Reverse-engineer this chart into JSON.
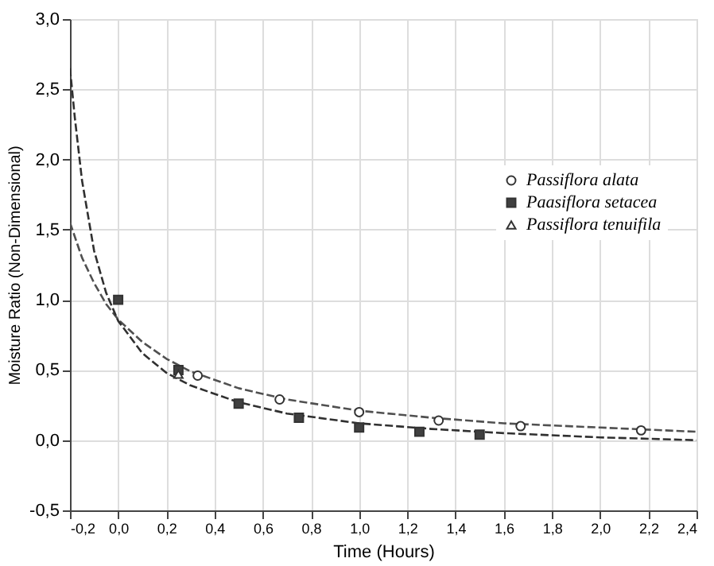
{
  "chart_data": {
    "type": "scatter",
    "xlabel": "Time (Hours)",
    "ylabel": "Moisture Ratio (Non-Dimensional)",
    "xlim": [
      -0.2,
      2.4
    ],
    "ylim": [
      -0.5,
      3.0
    ],
    "xticks": [
      {
        "value": -0.2,
        "label": "-0,2"
      },
      {
        "value": 0,
        "label": "0,0"
      },
      {
        "value": 0.2,
        "label": "0,2"
      },
      {
        "value": 0.4,
        "label": "0,4"
      },
      {
        "value": 0.6,
        "label": "0,6"
      },
      {
        "value": 0.8,
        "label": "0,8"
      },
      {
        "value": 1.0,
        "label": "1,0"
      },
      {
        "value": 1.2,
        "label": "1,2"
      },
      {
        "value": 1.4,
        "label": "1,4"
      },
      {
        "value": 1.6,
        "label": "1,6"
      },
      {
        "value": 1.8,
        "label": "1,8"
      },
      {
        "value": 2.0,
        "label": "2,0"
      },
      {
        "value": 2.2,
        "label": "2,2"
      },
      {
        "value": 2.4,
        "label": "2,4"
      }
    ],
    "yticks": [
      {
        "value": -0.5,
        "label": "-0,5"
      },
      {
        "value": 0,
        "label": "0,0"
      },
      {
        "value": 0.5,
        "label": "0,5"
      },
      {
        "value": 1.0,
        "label": "1,0"
      },
      {
        "value": 1.5,
        "label": "1,5"
      },
      {
        "value": 2.0,
        "label": "2,0"
      },
      {
        "value": 2.5,
        "label": "2,5"
      },
      {
        "value": 3.0,
        "label": "3,0"
      }
    ],
    "grid": true,
    "legend": "right",
    "series": [
      {
        "name": "Passiflora alata",
        "type": "scatter",
        "marker": "circle",
        "color": "#ffffff",
        "x": [
          0.33,
          0.67,
          1.0,
          1.33,
          1.67,
          2.17
        ],
        "values": [
          0.46,
          0.29,
          0.2,
          0.14,
          0.1,
          0.07
        ]
      },
      {
        "name": "Paasiflora setacea",
        "type": "scatter",
        "marker": "square",
        "color": "#404040",
        "x": [
          0.0,
          0.25,
          0.5,
          0.75,
          1.0,
          1.25,
          1.5
        ],
        "values": [
          1.0,
          0.5,
          0.26,
          0.16,
          0.09,
          0.06,
          0.04
        ]
      },
      {
        "name": "Passiflora tenuifila",
        "type": "scatter",
        "marker": "triangle",
        "color": "#ffffff",
        "x": [
          0.25
        ],
        "values": [
          0.47
        ]
      },
      {
        "type": "line",
        "marker": "none",
        "line_style": "dashed",
        "color": "#505050",
        "x": [
          -0.2,
          -0.15,
          -0.1,
          -0.05,
          0,
          0.1,
          0.2,
          0.3,
          0.5,
          0.7,
          1.0,
          1.3,
          1.6,
          2.0,
          2.4
        ],
        "values": [
          1.55,
          1.3,
          1.12,
          0.97,
          0.86,
          0.7,
          0.58,
          0.49,
          0.37,
          0.29,
          0.21,
          0.16,
          0.12,
          0.09,
          0.06
        ]
      },
      {
        "type": "line",
        "marker": "none",
        "line_style": "dashed",
        "color": "#303030",
        "x": [
          -0.2,
          -0.18,
          -0.15,
          -0.1,
          -0.05,
          0,
          0.1,
          0.2,
          0.3,
          0.5,
          0.7,
          1.0,
          1.3,
          1.6,
          2.0,
          2.4
        ],
        "values": [
          2.65,
          2.3,
          1.85,
          1.35,
          1.05,
          0.85,
          0.62,
          0.48,
          0.39,
          0.27,
          0.19,
          0.12,
          0.08,
          0.05,
          0.02,
          0.0
        ]
      }
    ]
  }
}
